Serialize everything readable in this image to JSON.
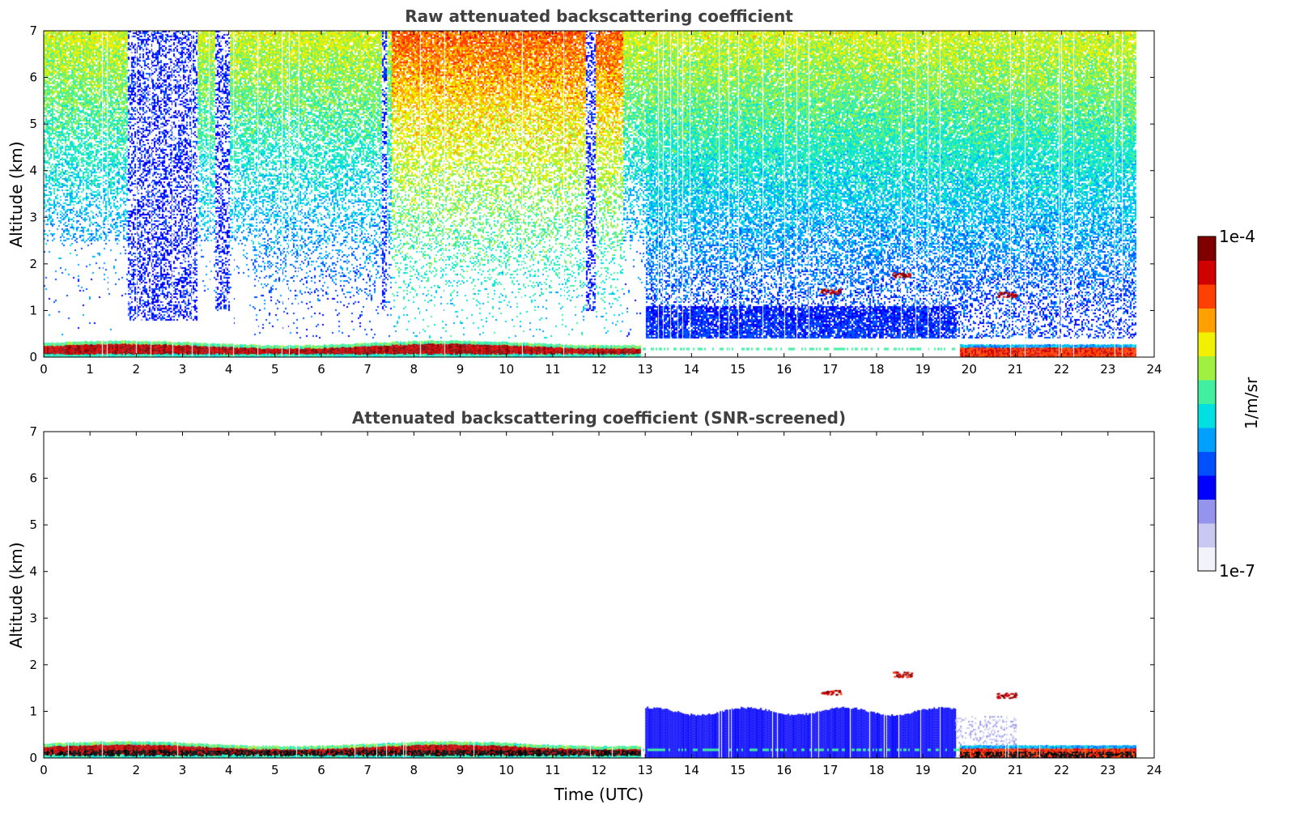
{
  "chart_data": [
    {
      "type": "heatmap",
      "title": "Raw attenuated backscattering coefficient",
      "ylabel": "Altitude (km)",
      "xlabel": "",
      "xlim": [
        0,
        24
      ],
      "ylim": [
        0,
        7
      ],
      "xticks": [
        0,
        1,
        2,
        3,
        4,
        5,
        6,
        7,
        8,
        9,
        10,
        11,
        12,
        13,
        14,
        15,
        16,
        17,
        18,
        19,
        20,
        21,
        22,
        23,
        24
      ],
      "yticks": [
        0,
        1,
        2,
        3,
        4,
        5,
        6,
        7
      ],
      "data_end_hour": 23.6,
      "features": [
        {
          "name": "aerosol-layer",
          "x_range": [
            0,
            13
          ],
          "top_km": 0.35,
          "level": "high"
        },
        {
          "name": "noise-aloft",
          "x_range": [
            0,
            23.6
          ],
          "alt_range_km": [
            1,
            7
          ],
          "level": "medium"
        },
        {
          "name": "blue-band-low-noise",
          "x_range": [
            1.8,
            3.3
          ],
          "alt_range_km": [
            0.8,
            7
          ],
          "level": "low"
        },
        {
          "name": "blue-band-low-noise",
          "x_range": [
            3.7,
            4.0
          ],
          "alt_range_km": [
            1.0,
            7
          ],
          "level": "low"
        },
        {
          "name": "blue-band-low-noise",
          "x_range": [
            7.3,
            7.4
          ],
          "alt_range_km": [
            1.0,
            7
          ],
          "level": "low"
        },
        {
          "name": "blue-band-low-noise",
          "x_range": [
            11.7,
            11.9
          ],
          "alt_range_km": [
            1.0,
            7
          ],
          "level": "low"
        },
        {
          "name": "boundary-layer",
          "x_range": [
            13,
            19.7
          ],
          "alt_range_km": [
            0,
            1.1
          ],
          "level": "low-medium"
        },
        {
          "name": "cloud",
          "x": 17.0,
          "alt_km": 1.42,
          "level": "high"
        },
        {
          "name": "cloud",
          "x": 18.5,
          "alt_km": 1.77,
          "level": "high"
        },
        {
          "name": "cloud",
          "x": 20.8,
          "alt_km": 1.35,
          "level": "high"
        }
      ]
    },
    {
      "type": "heatmap",
      "title": "Attenuated backscattering coefficient (SNR-screened)",
      "ylabel": "Altitude (km)",
      "xlabel": "Time (UTC)",
      "xlim": [
        0,
        24
      ],
      "ylim": [
        0,
        7
      ],
      "xticks": [
        0,
        1,
        2,
        3,
        4,
        5,
        6,
        7,
        8,
        9,
        10,
        11,
        12,
        13,
        14,
        15,
        16,
        17,
        18,
        19,
        20,
        21,
        22,
        23,
        24
      ],
      "yticks": [
        0,
        1,
        2,
        3,
        4,
        5,
        6,
        7
      ],
      "data_end_hour": 23.6,
      "features": [
        {
          "name": "aerosol-layer",
          "x_range": [
            0,
            13
          ],
          "top_km": 0.35,
          "level": "high"
        },
        {
          "name": "boundary-layer",
          "x_range": [
            13,
            19.7
          ],
          "alt_range_km": [
            0,
            1.1
          ],
          "level": "low"
        },
        {
          "name": "aerosol-layer",
          "x_range": [
            19.8,
            23.6
          ],
          "top_km": 0.28,
          "level": "medium"
        },
        {
          "name": "cloud",
          "x": 17.0,
          "alt_km": 1.42,
          "level": "high"
        },
        {
          "name": "cloud",
          "x": 18.55,
          "alt_km": 1.8,
          "level": "high"
        },
        {
          "name": "cloud",
          "x": 20.8,
          "alt_km": 1.35,
          "level": "high"
        }
      ]
    }
  ],
  "colorbar": {
    "max_label": "1e-4",
    "min_label": "1e-7",
    "unit_label": "1/m/sr",
    "colormap": [
      "#f2f2fb",
      "#c8c8f0",
      "#9494ec",
      "#0000ff",
      "#0050ff",
      "#00a0ff",
      "#00e0e0",
      "#40f0a0",
      "#a0f040",
      "#f0f000",
      "#ffa000",
      "#ff4000",
      "#d00000",
      "#800000"
    ]
  }
}
